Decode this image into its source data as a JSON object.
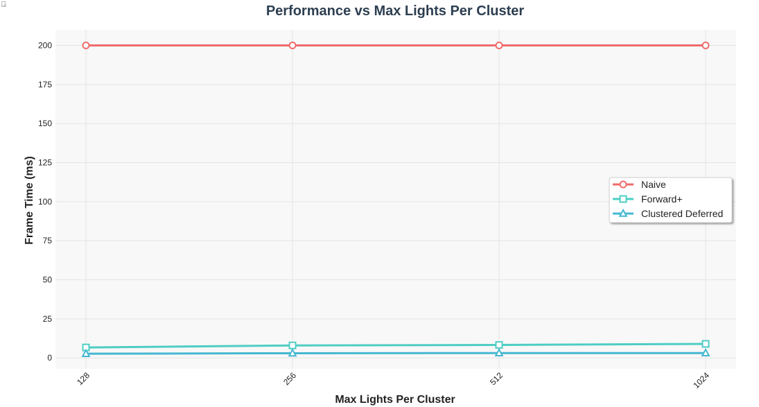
{
  "cell_icon": "⍈",
  "chart_data": {
    "type": "line",
    "title": "Performance vs Max Lights Per Cluster",
    "xlabel": "Max Lights Per Cluster",
    "ylabel": "Frame Time (ms)",
    "categories": [
      "128",
      "256",
      "512",
      "1024"
    ],
    "ylim": [
      -7,
      210
    ],
    "yticks": [
      0,
      25,
      50,
      75,
      100,
      125,
      150,
      175,
      200
    ],
    "ytick_labels": [
      "0",
      "25",
      "50",
      "75",
      "100",
      "125",
      "150",
      "175",
      "200"
    ],
    "grid": true,
    "legend_position": "center-right",
    "series": [
      {
        "name": "Naive",
        "values": [
          200,
          200,
          200,
          200
        ],
        "color": "#f06b6b",
        "marker": "circle"
      },
      {
        "name": "Forward+",
        "values": [
          6.7,
          8.0,
          8.3,
          9.0
        ],
        "color": "#4ecdc4",
        "marker": "square"
      },
      {
        "name": "Clustered Deferred",
        "values": [
          2.7,
          3.0,
          3.1,
          3.1
        ],
        "color": "#45b7d1",
        "marker": "triangle"
      }
    ]
  }
}
